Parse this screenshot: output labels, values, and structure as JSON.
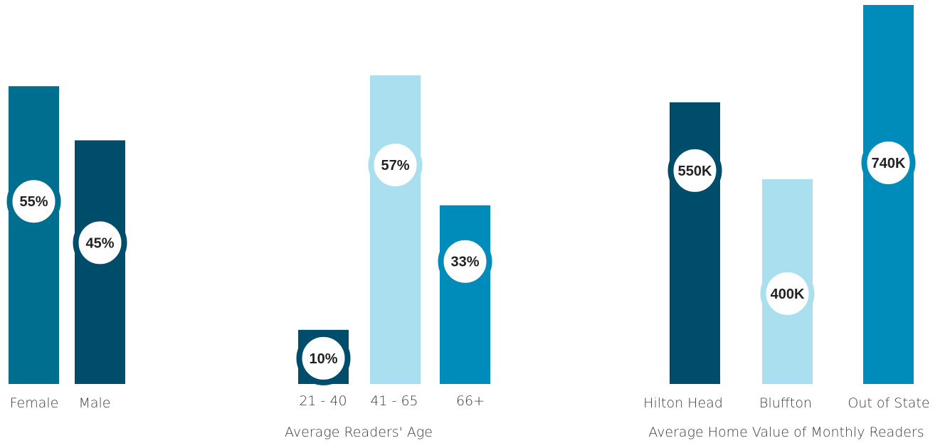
{
  "colors": {
    "teal": "#006e8f",
    "navy": "#004d6b",
    "light_blue": "#aadff0",
    "medium_blue": "#008cbb",
    "badge_fill": "#ffffff",
    "badge_text": "#222222",
    "label_text": "#3a3a3a"
  },
  "chart_data": [
    {
      "type": "bar",
      "title": "",
      "categories": [
        "Female",
        "Male"
      ],
      "values": [
        55,
        45
      ],
      "value_labels": [
        "55%",
        "45%"
      ],
      "bar_colors": [
        "#006e8f",
        "#004d6b"
      ],
      "unit": "%",
      "ylim": [
        0,
        70
      ],
      "grid": false,
      "legend": "none"
    },
    {
      "type": "bar",
      "title": "Average Readers' Age",
      "categories": [
        "21 - 40",
        "41 - 65",
        "66+"
      ],
      "values": [
        10,
        57,
        33
      ],
      "value_labels": [
        "10%",
        "57%",
        "33%"
      ],
      "bar_colors": [
        "#004d6b",
        "#aadff0",
        "#008cbb"
      ],
      "unit": "%",
      "ylim": [
        0,
        70
      ],
      "grid": false,
      "legend": "none"
    },
    {
      "type": "bar",
      "title": "Average Home Value of Monthly Readers",
      "categories": [
        "Hilton Head",
        "Bluffton",
        "Out of State"
      ],
      "values": [
        550,
        400,
        740
      ],
      "value_labels": [
        "550K",
        "400K",
        "740K"
      ],
      "bar_colors": [
        "#004d6b",
        "#aadff0",
        "#008cbb"
      ],
      "unit": "K",
      "ylim": [
        0,
        740
      ],
      "grid": false,
      "legend": "none"
    }
  ]
}
